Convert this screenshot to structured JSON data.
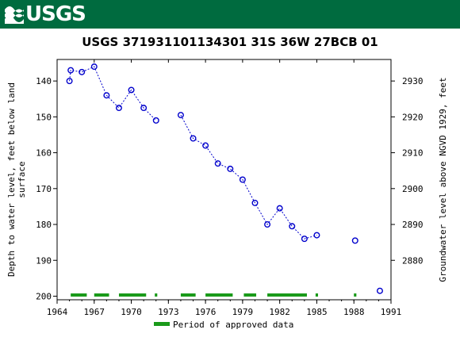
{
  "header": {
    "logo_text": "USGS"
  },
  "chart_data": {
    "type": "scatter",
    "title": "USGS 371931101134301 31S 36W 27BCB 01",
    "ylabel_left": [
      "Depth to water level, feet below land",
      "surface"
    ],
    "ylabel_right": "Groundwater level above NGVD 1929, feet",
    "x_ticks": [
      1964,
      1967,
      1970,
      1973,
      1976,
      1979,
      1982,
      1985,
      1988,
      1991
    ],
    "xlim": [
      1964,
      1991
    ],
    "ylim_left": [
      134,
      201
    ],
    "y_ticks_left": [
      140,
      150,
      160,
      170,
      180,
      190,
      200
    ],
    "y_ticks_right": [
      2930,
      2920,
      2910,
      2900,
      2890,
      2880
    ],
    "right_axis_offset": 3070,
    "series": [
      {
        "marker_color": "#0000cc",
        "x": [
          1965.0,
          1965.1,
          1966.0,
          1967.0,
          1968.0,
          1969.0,
          1970.0,
          1971.0,
          1972.0,
          1974.0,
          1975.0,
          1976.0,
          1977.0,
          1978.0,
          1979.0,
          1980.0,
          1981.0,
          1982.0,
          1983.0,
          1984.0,
          1985.0,
          1988.1,
          1990.1
        ],
        "y": [
          140.0,
          137.0,
          137.5,
          136.0,
          144.0,
          147.5,
          142.5,
          147.5,
          151.0,
          149.5,
          156.0,
          158.0,
          163.0,
          164.5,
          167.5,
          174.0,
          180.0,
          175.5,
          180.5,
          184.0,
          183.0,
          184.5,
          198.5
        ],
        "connected_segments": [
          [
            0,
            8
          ],
          [
            9,
            20
          ]
        ]
      }
    ],
    "approved_periods": [
      [
        1965.1,
        1966.4
      ],
      [
        1967.0,
        1968.2
      ],
      [
        1969.0,
        1971.2
      ],
      [
        1971.9,
        1972.1
      ],
      [
        1974.0,
        1975.2
      ],
      [
        1976.0,
        1978.2
      ],
      [
        1979.1,
        1980.1
      ],
      [
        1981.0,
        1984.2
      ],
      [
        1984.9,
        1985.1
      ],
      [
        1988.0,
        1988.2
      ]
    ],
    "legend_label": "Period of approved data",
    "approved_color": "#1a9a1a",
    "legend_position": "bottom-center"
  }
}
